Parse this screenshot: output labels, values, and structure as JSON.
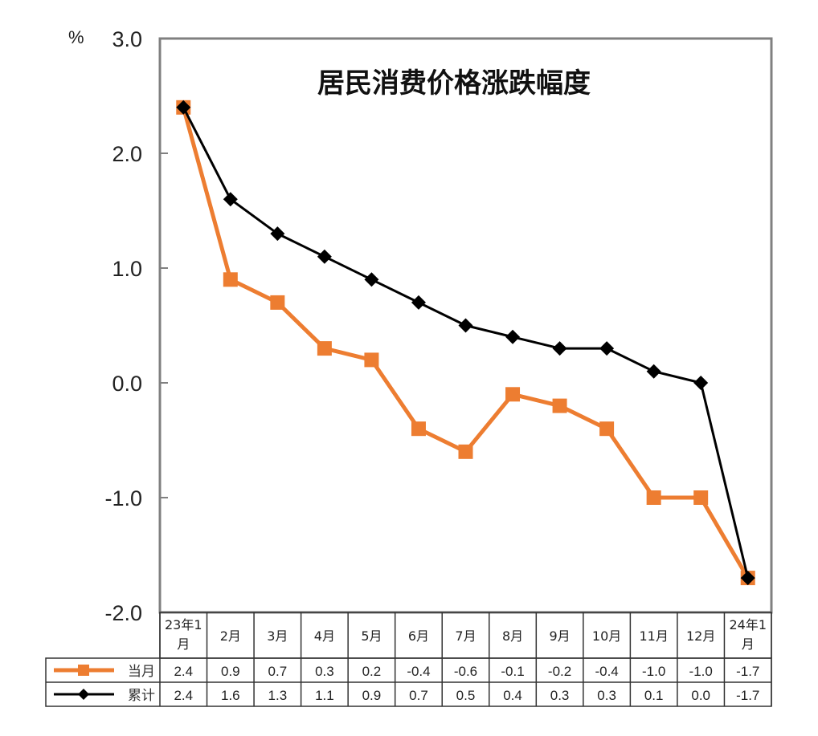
{
  "chart_data": {
    "type": "line",
    "title": "居民消费价格涨跌幅度",
    "ylabel": "%",
    "xlabel": "",
    "ylim": [
      -2.0,
      3.0
    ],
    "yticks": [
      "3.0",
      "2.0",
      "1.0",
      "0.0",
      "-1.0",
      "-2.0"
    ],
    "grid": false,
    "legend_position": "data-table-left",
    "categories": [
      "23年1月",
      "2月",
      "3月",
      "4月",
      "5月",
      "6月",
      "7月",
      "8月",
      "9月",
      "10月",
      "11月",
      "12月",
      "24年1月"
    ],
    "category_lines": [
      [
        "23年1",
        "月"
      ],
      [
        "2月"
      ],
      [
        "3月"
      ],
      [
        "4月"
      ],
      [
        "5月"
      ],
      [
        "6月"
      ],
      [
        "7月"
      ],
      [
        "8月"
      ],
      [
        "9月"
      ],
      [
        "10月"
      ],
      [
        "11月"
      ],
      [
        "12月"
      ],
      [
        "24年1",
        "月"
      ]
    ],
    "series": [
      {
        "name": "当月",
        "color": "#ED7D31",
        "marker": "square",
        "values": [
          2.4,
          0.9,
          0.7,
          0.3,
          0.2,
          -0.4,
          -0.6,
          -0.1,
          -0.2,
          -0.4,
          -1.0,
          -1.0,
          -1.7
        ],
        "labels": [
          "2.4",
          "0.9",
          "0.7",
          "0.3",
          "0.2",
          "-0.4",
          "-0.6",
          "-0.1",
          "-0.2",
          "-0.4",
          "-1.0",
          "-1.0",
          "-1.7"
        ]
      },
      {
        "name": "累计",
        "color": "#000000",
        "marker": "diamond",
        "values": [
          2.4,
          1.6,
          1.3,
          1.1,
          0.9,
          0.7,
          0.5,
          0.4,
          0.3,
          0.3,
          0.1,
          0.0,
          -1.7
        ],
        "labels": [
          "2.4",
          "1.6",
          "1.3",
          "1.1",
          "0.9",
          "0.7",
          "0.5",
          "0.4",
          "0.3",
          "0.3",
          "0.1",
          "0.0",
          "-1.7"
        ]
      }
    ]
  }
}
